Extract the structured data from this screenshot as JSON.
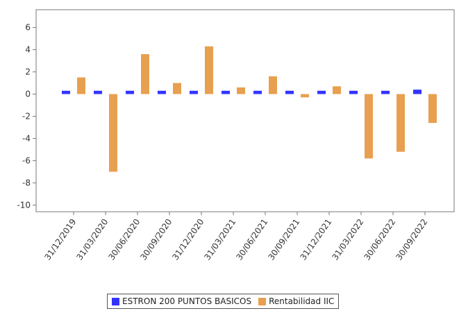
{
  "chart_data": {
    "type": "bar",
    "title": "",
    "xlabel": "",
    "ylabel": "",
    "ylim": [
      -10.6,
      7.6
    ],
    "yticks": [
      -10,
      -8,
      -6,
      -4,
      -2,
      0,
      2,
      4,
      6
    ],
    "ytick_labels": [
      "-10",
      "-8",
      "-6",
      "-4",
      "-2",
      "0",
      "2",
      "4",
      "6"
    ],
    "grid": false,
    "legend_position": "bottom",
    "categories": [
      "31/12/2019",
      "31/03/2020",
      "30/06/2020",
      "30/09/2020",
      "31/12/2020",
      "31/03/2021",
      "30/06/2021",
      "30/09/2021",
      "31/12/2021",
      "31/03/2022",
      "30/06/2022",
      "30/09/2022"
    ],
    "series": [
      {
        "name": "ESTRON 200 PUNTOS BASICOS",
        "color": "#3333ff",
        "values": [
          0.3,
          0.3,
          0.3,
          0.3,
          0.3,
          0.3,
          0.3,
          0.3,
          0.3,
          0.3,
          0.3,
          0.4
        ]
      },
      {
        "name": "Rentabilidad IIC",
        "color": "#e8a050",
        "values": [
          1.5,
          -7.0,
          3.6,
          1.0,
          4.3,
          0.6,
          1.6,
          -0.3,
          0.7,
          -5.8,
          -5.2,
          -2.6
        ]
      }
    ]
  }
}
